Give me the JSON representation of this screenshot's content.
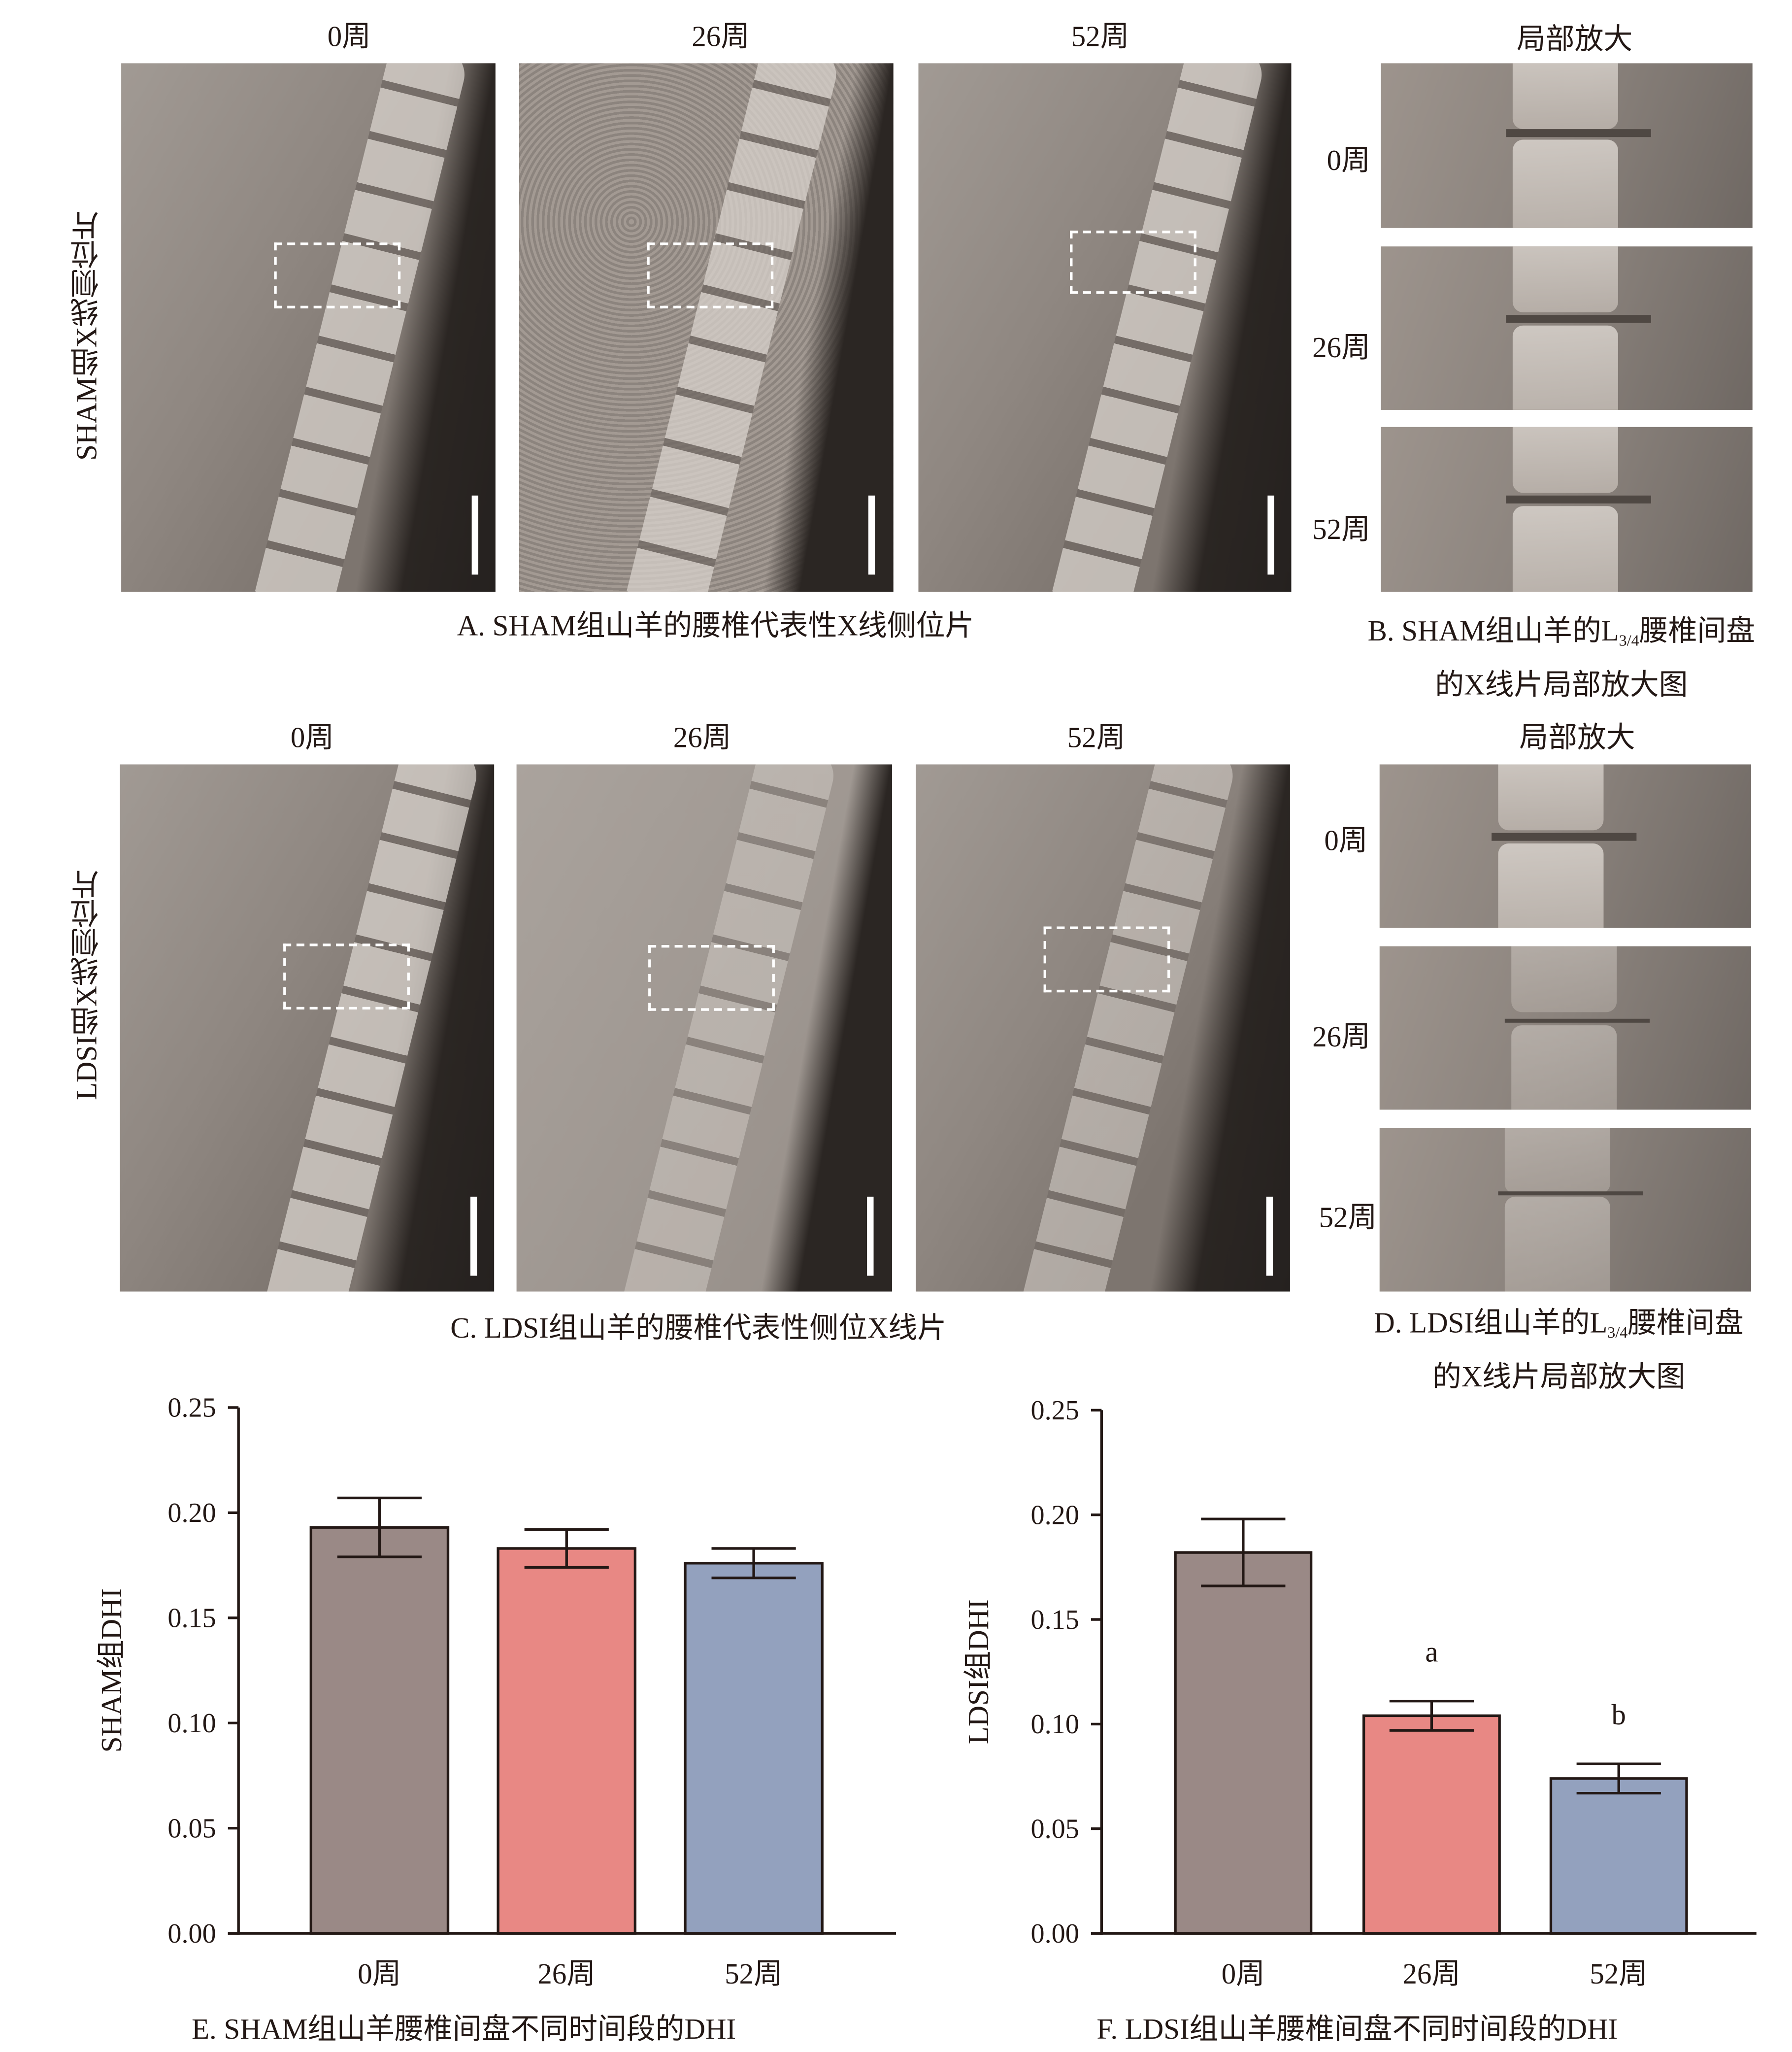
{
  "panel_a": {
    "headers": [
      "0周",
      "26周",
      "52周"
    ],
    "side_label": "SHAM组X线侧位片",
    "caption": "A.  SHAM组山羊的腰椎代表性X线侧位片"
  },
  "panel_b": {
    "header": "局部放大",
    "rows": [
      "0周",
      "26周",
      "52周"
    ],
    "caption_pre": "B. SHAM组山羊的L",
    "caption_sub": "3/4",
    "caption_post": "腰椎间盘",
    "caption_line2": "的X线片局部放大图"
  },
  "panel_c": {
    "headers": [
      "0周",
      "26周",
      "52周"
    ],
    "side_label": "LDSI组X线侧位片",
    "caption": "C. LDSI组山羊的腰椎代表性侧位X线片"
  },
  "panel_d": {
    "header": "局部放大",
    "rows": [
      "0周",
      "26周",
      "52周"
    ],
    "caption_pre": "D. LDSI组山羊的L",
    "caption_sub": "3/4",
    "caption_post": "腰椎间盘",
    "caption_line2": "的X线片局部放大图"
  },
  "colors": {
    "bar_0": "#9a8986",
    "bar_26": "#e88884",
    "bar_52": "#93a1be",
    "axis": "#231815"
  },
  "chart_data": [
    {
      "type": "bar",
      "title": "E. SHAM组山羊腰椎间盘不同时间段的DHI",
      "xlabel": "",
      "ylabel": "SHAM组DHI",
      "categories": [
        "0周",
        "26周",
        "52周"
      ],
      "values": [
        0.193,
        0.183,
        0.176
      ],
      "errors": [
        0.014,
        0.009,
        0.007
      ],
      "annotations": [
        "",
        "",
        ""
      ],
      "ylim": [
        0,
        0.25
      ],
      "yticks": [
        "0.00",
        "0.05",
        "0.10",
        "0.15",
        "0.20",
        "0.25"
      ],
      "grid": false
    },
    {
      "type": "bar",
      "title": "F. LDSI组山羊腰椎间盘不同时间段的DHI",
      "xlabel": "",
      "ylabel": "LDSI组DHI",
      "categories": [
        "0周",
        "26周",
        "52周"
      ],
      "values": [
        0.182,
        0.104,
        0.074
      ],
      "errors": [
        0.016,
        0.007,
        0.007
      ],
      "annotations": [
        "",
        "a",
        "b"
      ],
      "ylim": [
        0,
        0.25
      ],
      "yticks": [
        "0.00",
        "0.05",
        "0.10",
        "0.15",
        "0.20",
        "0.25"
      ],
      "grid": false
    }
  ]
}
